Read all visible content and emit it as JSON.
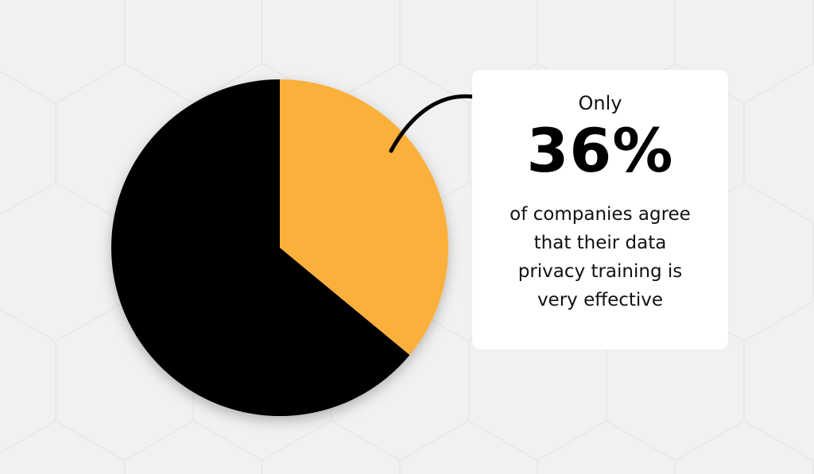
{
  "chart_data": {
    "type": "pie",
    "slices": [
      {
        "label": "",
        "value": 36,
        "color": "#fbb03b"
      },
      {
        "label": "",
        "value": 64,
        "color": "#000000"
      }
    ]
  },
  "callout": {
    "prefix": "Only",
    "value": "36%",
    "lines": [
      "of companies agree",
      "that their data",
      "privacy training is",
      "very effective"
    ]
  },
  "colors": {
    "background": "#f1f1f1",
    "accent": "#fbb03b",
    "card": "#ffffff"
  }
}
